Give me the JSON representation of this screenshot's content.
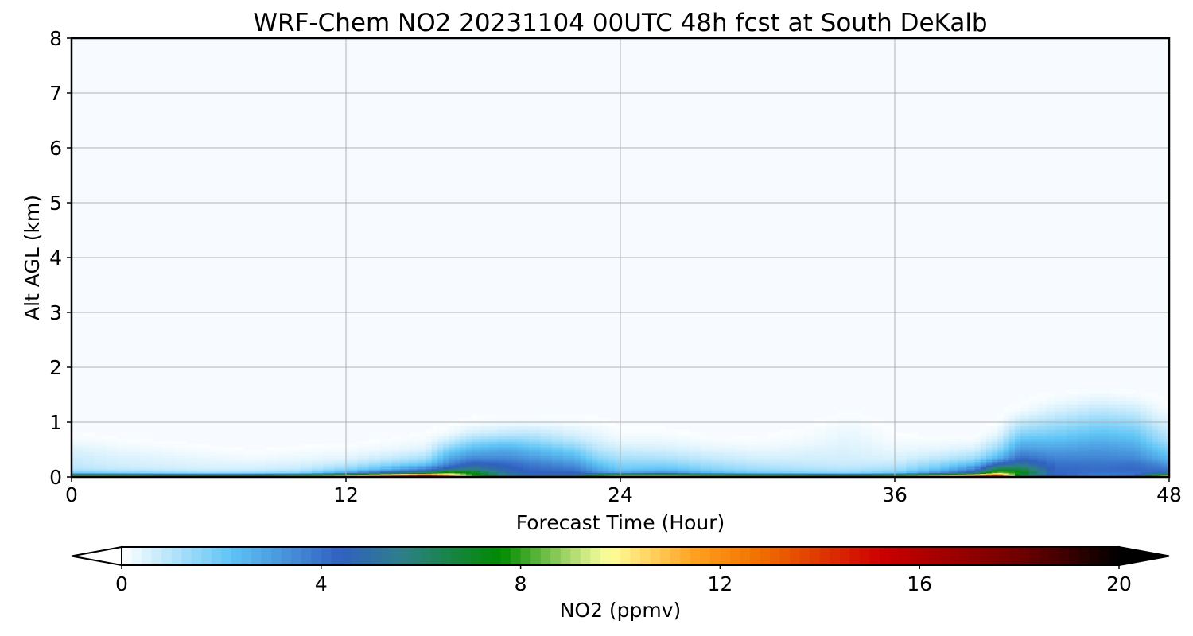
{
  "chart_data": {
    "type": "heatmap",
    "title": "WRF-Chem NO2  20231104 00UTC 48h fcst at South DeKalb",
    "xlabel": "Forecast Time (Hour)",
    "ylabel": "Alt AGL (km)",
    "xlim": [
      0,
      48
    ],
    "ylim": [
      0,
      8
    ],
    "x_ticks": [
      0,
      12,
      24,
      36,
      48
    ],
    "y_ticks": [
      0,
      1,
      2,
      3,
      4,
      5,
      6,
      7,
      8
    ],
    "grid": true,
    "colorbar": {
      "label": "NO2  (ppmv)",
      "range": [
        0,
        20
      ],
      "ticks": [
        0,
        4,
        8,
        12,
        16,
        20
      ],
      "extend": "both",
      "stops": [
        {
          "v": 0,
          "c": "#ffffff"
        },
        {
          "v": 2.2,
          "c": "#5ec4f5"
        },
        {
          "v": 4.4,
          "c": "#3060c0"
        },
        {
          "v": 5.6,
          "c": "#2e7f8a"
        },
        {
          "v": 7.6,
          "c": "#008a00"
        },
        {
          "v": 9.4,
          "c": "#d9f08c"
        },
        {
          "v": 9.8,
          "c": "#ffff9a"
        },
        {
          "v": 11.5,
          "c": "#ffa020"
        },
        {
          "v": 12.8,
          "c": "#f07000"
        },
        {
          "v": 15.2,
          "c": "#cc0000"
        },
        {
          "v": 18,
          "c": "#700000"
        },
        {
          "v": 20,
          "c": "#000000"
        }
      ]
    },
    "field_levels_km": [
      0,
      0.03,
      0.08,
      0.15,
      0.25,
      0.35,
      0.5,
      0.65,
      0.8,
      1.0,
      1.2,
      1.4,
      1.6
    ],
    "field_hours": [
      0,
      2,
      4,
      6,
      8,
      10,
      12,
      14,
      15.5,
      16.5,
      17.5,
      19,
      20,
      22,
      23,
      24,
      26,
      28,
      30,
      32,
      34,
      36,
      38,
      39.5,
      40.5,
      41.5,
      43,
      45,
      46.5,
      47.5,
      48
    ],
    "field_ppmv": [
      [
        16,
        8,
        2,
        1,
        0.8,
        0.7,
        0.5,
        0.2,
        0.05,
        0,
        0,
        0,
        0
      ],
      [
        15,
        8,
        1.8,
        0.8,
        0.6,
        0.5,
        0.3,
        0.1,
        0,
        0,
        0,
        0,
        0
      ],
      [
        15,
        7,
        1.6,
        0.7,
        0.5,
        0.4,
        0.2,
        0.05,
        0,
        0,
        0,
        0,
        0
      ],
      [
        14,
        7,
        1.4,
        0.6,
        0.4,
        0.3,
        0.1,
        0,
        0,
        0,
        0,
        0,
        0
      ],
      [
        14,
        7,
        1.5,
        0.6,
        0.4,
        0.2,
        0.05,
        0,
        0,
        0,
        0,
        0,
        0
      ],
      [
        15,
        8,
        1.7,
        0.8,
        0.5,
        0.3,
        0.1,
        0,
        0,
        0,
        0,
        0,
        0
      ],
      [
        17,
        10,
        3,
        1.5,
        0.8,
        0.4,
        0.15,
        0,
        0,
        0,
        0,
        0,
        0
      ],
      [
        19,
        13,
        5,
        2.5,
        1.5,
        0.8,
        0.3,
        0.1,
        0,
        0,
        0,
        0,
        0
      ],
      [
        20,
        16,
        6,
        3.5,
        2,
        1.2,
        0.5,
        0.2,
        0.05,
        0,
        0,
        0,
        0
      ],
      [
        20,
        12,
        8.5,
        4.8,
        3.5,
        2.8,
        1.8,
        0.8,
        0.2,
        0,
        0,
        0,
        0
      ],
      [
        14,
        8,
        7.5,
        5.5,
        4.5,
        3.5,
        2.5,
        1.5,
        0.6,
        0.1,
        0,
        0,
        0
      ],
      [
        6,
        5.5,
        5,
        4.6,
        4.2,
        3.5,
        2.8,
        1.8,
        0.8,
        0.2,
        0,
        0,
        0
      ],
      [
        5,
        4.8,
        4.5,
        4.2,
        3.8,
        3.2,
        2.5,
        1.6,
        0.9,
        0.2,
        0,
        0,
        0
      ],
      [
        6,
        5,
        4.5,
        3.8,
        3.2,
        2.6,
        1.8,
        1.0,
        0.5,
        0.15,
        0,
        0,
        0
      ],
      [
        11,
        8,
        3.5,
        2.8,
        2.2,
        1.6,
        1.0,
        0.6,
        0.3,
        0.1,
        0,
        0,
        0
      ],
      [
        15,
        9,
        3,
        2,
        1.6,
        1.2,
        0.7,
        0.3,
        0.1,
        0,
        0,
        0,
        0
      ],
      [
        15,
        9,
        3.5,
        2.2,
        1.6,
        1.1,
        0.6,
        0.3,
        0.1,
        0,
        0,
        0,
        0
      ],
      [
        15,
        8.5,
        2.5,
        1.6,
        1.2,
        0.8,
        0.4,
        0.15,
        0,
        0,
        0,
        0,
        0
      ],
      [
        14,
        8,
        2,
        1.3,
        0.9,
        0.6,
        0.3,
        0.1,
        0,
        0,
        0,
        0,
        0
      ],
      [
        14,
        7.5,
        1.8,
        1.1,
        0.8,
        0.6,
        0.4,
        0.2,
        0.1,
        0,
        0,
        0,
        0
      ],
      [
        13,
        7,
        1.6,
        1.0,
        0.7,
        0.6,
        0.5,
        0.4,
        0.3,
        0.2,
        0.05,
        0,
        0
      ],
      [
        14,
        8,
        2,
        1.2,
        0.8,
        0.5,
        0.3,
        0.15,
        0.05,
        0,
        0,
        0,
        0
      ],
      [
        16,
        10,
        3.5,
        2.2,
        1.5,
        0.9,
        0.4,
        0.15,
        0,
        0,
        0,
        0,
        0
      ],
      [
        18,
        12,
        5,
        3.5,
        2.2,
        1.3,
        0.6,
        0.2,
        0,
        0,
        0,
        0,
        0
      ],
      [
        20,
        15,
        8.8,
        6.5,
        4.2,
        2.5,
        1.5,
        0.8,
        0.3,
        0.05,
        0,
        0,
        0
      ],
      [
        11,
        6,
        7.8,
        6.5,
        5.2,
        4.2,
        3.2,
        2.4,
        1.6,
        0.8,
        0.2,
        0,
        0
      ],
      [
        4.5,
        4.4,
        4.3,
        4.2,
        4.0,
        3.6,
        3.0,
        2.4,
        1.8,
        1.2,
        0.6,
        0.2,
        0
      ],
      [
        3,
        3.5,
        4,
        4.1,
        3.9,
        3.6,
        3.2,
        2.7,
        2.2,
        1.6,
        1.0,
        0.4,
        0.1
      ],
      [
        6,
        4,
        4,
        4.2,
        4,
        3.5,
        3,
        2.5,
        2,
        1.4,
        0.8,
        0.3,
        0
      ],
      [
        13,
        8,
        4.4,
        4,
        3.5,
        2.8,
        2.2,
        1.6,
        1.2,
        0.7,
        0.3,
        0.1,
        0
      ],
      [
        16,
        10,
        4.2,
        3.8,
        3.0,
        2.4,
        1.8,
        1.2,
        0.8,
        0.5,
        0.2,
        0,
        0
      ]
    ]
  }
}
